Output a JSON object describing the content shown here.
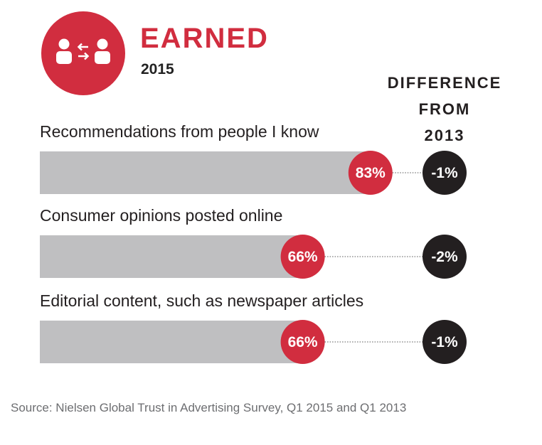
{
  "header": {
    "title": "EARNED",
    "year": "2015",
    "icon": "people-exchange-icon"
  },
  "diff_header": {
    "line1": "DIFFERENCE",
    "line2": "FROM",
    "line3": "2013"
  },
  "colors": {
    "accent": "#d12d3f",
    "bar": "#bfbfc1",
    "diff_badge": "#231f20",
    "text": "#231f20"
  },
  "chart_data": {
    "type": "bar",
    "orientation": "horizontal",
    "title": "EARNED 2015",
    "categories": [
      "Recommendations from people I know",
      "Consumer opinions posted online",
      "Editorial content, such as newspaper articles"
    ],
    "values": [
      83,
      66,
      66
    ],
    "value_labels": [
      "83%",
      "66%",
      "66%"
    ],
    "unit": "%",
    "xlim": [
      0,
      100
    ],
    "difference_from_2013": [
      -1,
      -2,
      -1
    ],
    "difference_labels": [
      "-1%",
      "-2%",
      "-1%"
    ],
    "grid": false
  },
  "source": "Source: Nielsen Global Trust in Advertising Survey, Q1 2015 and Q1 2013"
}
